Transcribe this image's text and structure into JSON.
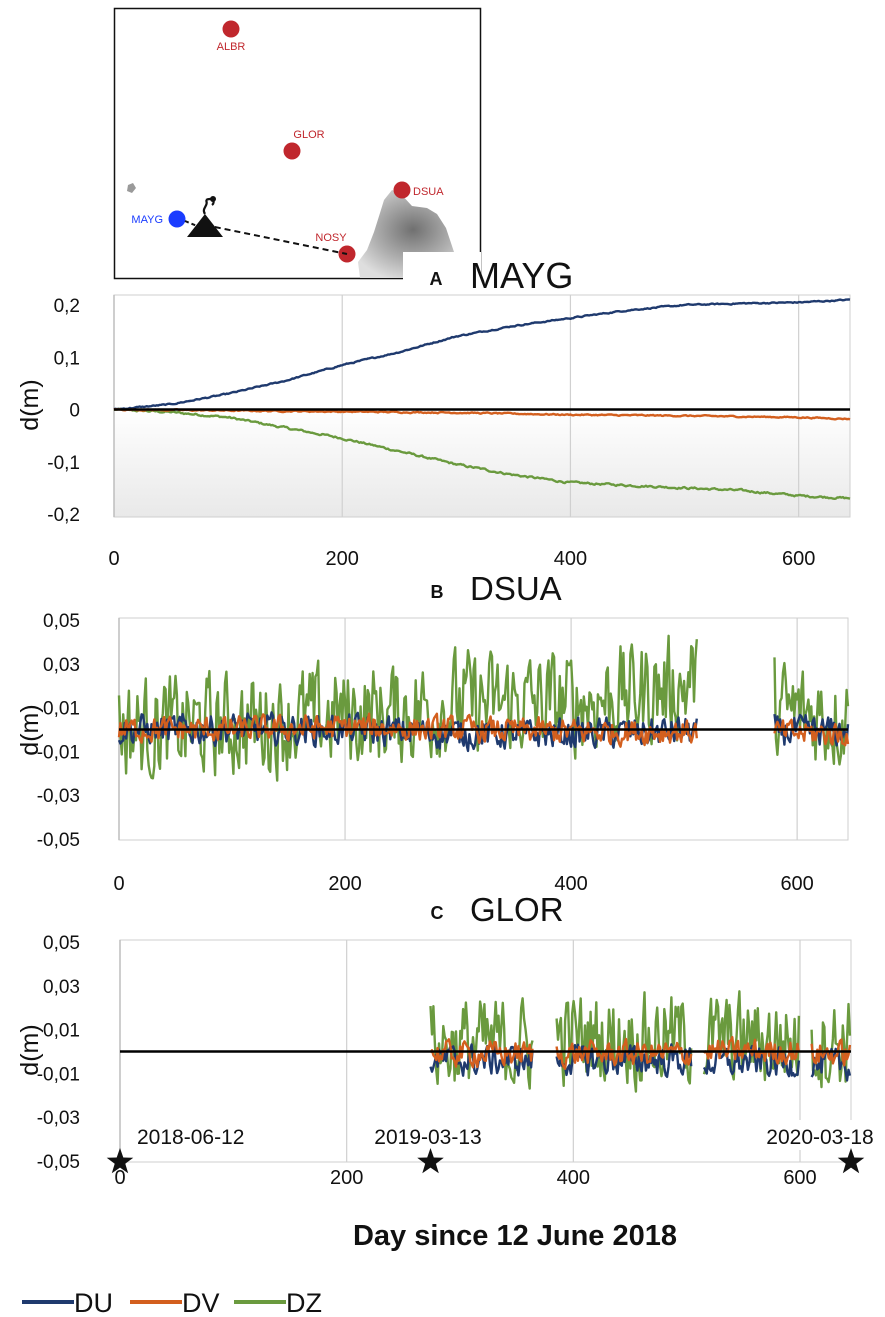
{
  "map": {
    "stations": [
      {
        "name": "ALBR",
        "color": "#c0272d"
      },
      {
        "name": "GLOR",
        "color": "#c0272d"
      },
      {
        "name": "DSUA",
        "color": "#c0272d"
      },
      {
        "name": "NOSY",
        "color": "#c0272d"
      },
      {
        "name": "MAYG",
        "color": "#1a3cff"
      }
    ],
    "volcano_icon": "volcano-icon"
  },
  "colors": {
    "DU": "#1f3a6e",
    "DV": "#d35f1e",
    "DZ": "#6a9a3e",
    "baseline": "#000000"
  },
  "xlabel": "Day since 12 June 2018",
  "legend": [
    {
      "key": "DU",
      "label": "DU"
    },
    {
      "key": "DV",
      "label": "DV"
    },
    {
      "key": "DZ",
      "label": "DZ"
    }
  ],
  "events": [
    {
      "day": 0,
      "label": "2018-06-12",
      "icon": "star-icon"
    },
    {
      "day": 274,
      "label": "2019-03-13",
      "icon": "star-icon"
    },
    {
      "day": 645,
      "label": "2020-03-18",
      "icon": "star-icon"
    }
  ],
  "chart_data": [
    {
      "type": "line",
      "panel": "A",
      "title": "MAYG",
      "ylabel": "d(m)",
      "xlim": [
        0,
        645
      ],
      "ylim": [
        -0.2,
        0.2
      ],
      "yticks": [
        "0,2",
        "0,1",
        "0",
        "-0,1",
        "-0,2"
      ],
      "ytick_values": [
        0.2,
        0.1,
        0,
        -0.1,
        -0.2
      ],
      "xticks": [
        "0",
        "200",
        "400",
        "600"
      ],
      "xtick_values": [
        0,
        200,
        400,
        600
      ],
      "series": [
        {
          "name": "DU",
          "x": [
            0,
            50,
            100,
            150,
            200,
            250,
            300,
            350,
            400,
            450,
            500,
            550,
            600,
            645
          ],
          "values": [
            0.0,
            0.01,
            0.03,
            0.055,
            0.085,
            0.11,
            0.14,
            0.16,
            0.175,
            0.19,
            0.2,
            0.203,
            0.205,
            0.21
          ]
        },
        {
          "name": "DV",
          "x": [
            0,
            100,
            200,
            300,
            400,
            500,
            600,
            645
          ],
          "values": [
            0.0,
            -0.002,
            -0.004,
            -0.006,
            -0.01,
            -0.012,
            -0.015,
            -0.018
          ]
        },
        {
          "name": "DZ",
          "x": [
            0,
            50,
            100,
            150,
            200,
            250,
            300,
            350,
            400,
            450,
            500,
            550,
            600,
            645
          ],
          "values": [
            0.0,
            -0.005,
            -0.015,
            -0.035,
            -0.055,
            -0.08,
            -0.105,
            -0.125,
            -0.14,
            -0.145,
            -0.15,
            -0.155,
            -0.165,
            -0.17
          ]
        }
      ]
    },
    {
      "type": "line",
      "panel": "B",
      "title": "DSUA",
      "ylabel": "d(m)",
      "xlim": [
        0,
        645
      ],
      "ylim": [
        -0.05,
        0.05
      ],
      "yticks": [
        "0,05",
        "0,03",
        "0,01",
        "-0,01",
        "-0,03",
        "-0,05"
      ],
      "ytick_values": [
        0.05,
        0.03,
        0.01,
        -0.01,
        -0.03,
        -0.05
      ],
      "xticks": [
        "0",
        "200",
        "400",
        "600"
      ],
      "xtick_values": [
        0,
        200,
        400,
        600
      ],
      "gaps": [
        [
          512,
          580
        ]
      ],
      "series": [
        {
          "name": "DU",
          "x": [
            0,
            100,
            200,
            300,
            400,
            500,
            645
          ],
          "values": [
            0.0,
            0.0,
            0.0,
            -0.002,
            -0.002,
            -0.001,
            -0.001
          ]
        },
        {
          "name": "DV",
          "x": [
            0,
            100,
            200,
            300,
            400,
            500,
            645
          ],
          "values": [
            0.0,
            0.0,
            0.001,
            0.0,
            -0.001,
            -0.001,
            -0.002
          ]
        },
        {
          "name": "DZ",
          "x": [
            0,
            100,
            200,
            250,
            300,
            400,
            500,
            512,
            580,
            645
          ],
          "values": [
            0.0,
            0.002,
            0.006,
            0.008,
            0.012,
            0.012,
            0.02,
            0.025,
            0.008,
            0.006
          ]
        }
      ]
    },
    {
      "type": "line",
      "panel": "C",
      "title": "GLOR",
      "ylabel": "d(m)",
      "xlim": [
        0,
        645
      ],
      "ylim": [
        -0.05,
        0.05
      ],
      "yticks": [
        "0,05",
        "0,03",
        "0,01",
        "-0,01",
        "-0,03",
        "-0,05"
      ],
      "ytick_values": [
        0.05,
        0.03,
        0.01,
        -0.01,
        -0.03,
        -0.05
      ],
      "xticks": [
        "0",
        "200",
        "400",
        "600"
      ],
      "xtick_values": [
        0,
        200,
        400,
        600
      ],
      "data_start": 274,
      "gaps": [
        [
          365,
          385
        ],
        [
          505,
          515
        ],
        [
          600,
          610
        ]
      ],
      "series": [
        {
          "name": "DU",
          "x": [
            274,
            365,
            385,
            505,
            515,
            600,
            610,
            645
          ],
          "values": [
            -0.004,
            -0.004,
            -0.004,
            -0.004,
            -0.005,
            -0.005,
            -0.006,
            -0.006
          ]
        },
        {
          "name": "DV",
          "x": [
            274,
            365,
            385,
            505,
            515,
            600,
            610,
            645
          ],
          "values": [
            -0.001,
            -0.001,
            -0.001,
            -0.001,
            0.0,
            0.0,
            -0.001,
            -0.001
          ]
        },
        {
          "name": "DZ",
          "x": [
            274,
            365,
            385,
            505,
            515,
            600,
            610,
            645
          ],
          "values": [
            0.003,
            0.003,
            0.006,
            0.006,
            0.005,
            0.005,
            0.004,
            0.004
          ]
        }
      ]
    }
  ]
}
